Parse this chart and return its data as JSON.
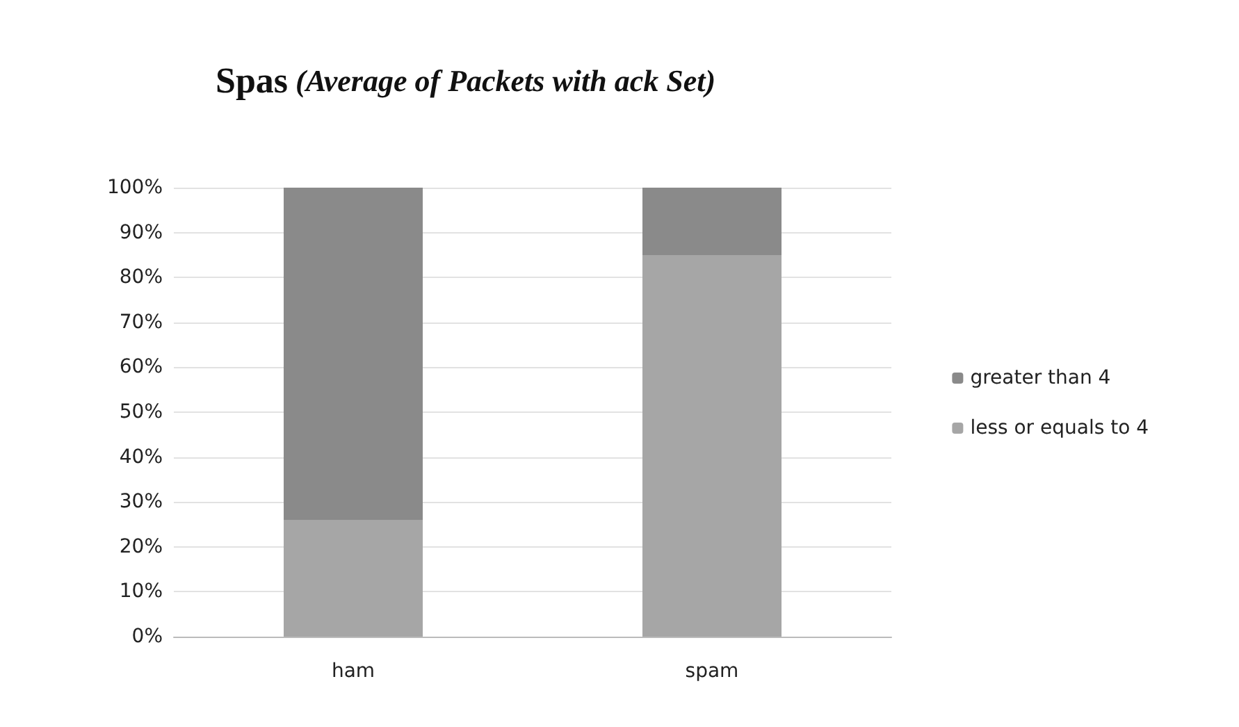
{
  "chart_data": {
    "type": "bar",
    "title": "Spas (Average of Packets with ack Set)",
    "categories": [
      "ham",
      "spam"
    ],
    "stacked": true,
    "series": [
      {
        "name": "less or equals to 4",
        "color": "#a6a6a6",
        "values": [
          26,
          85
        ]
      },
      {
        "name": "greater than 4",
        "color": "#8a8a8a",
        "values": [
          74,
          15
        ]
      }
    ],
    "ylim": [
      0,
      100
    ],
    "yticks": [
      {
        "value": 0,
        "label": "0%"
      },
      {
        "value": 10,
        "label": "10%"
      },
      {
        "value": 20,
        "label": "20%"
      },
      {
        "value": 30,
        "label": "30%"
      },
      {
        "value": 40,
        "label": "40%"
      },
      {
        "value": 50,
        "label": "50%"
      },
      {
        "value": 60,
        "label": "60%"
      },
      {
        "value": 70,
        "label": "70%"
      },
      {
        "value": 80,
        "label": "80%"
      },
      {
        "value": 90,
        "label": "90%"
      },
      {
        "value": 100,
        "label": "100%"
      }
    ],
    "grid": "y",
    "legend": "right"
  }
}
